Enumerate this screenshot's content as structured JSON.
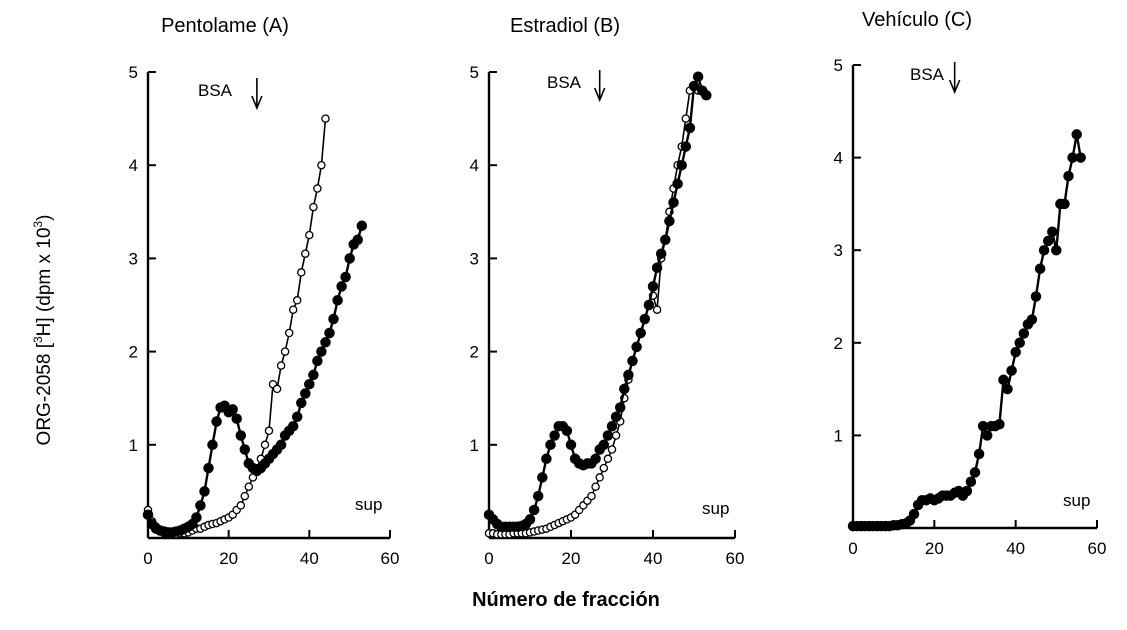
{
  "figure": {
    "ylabel_main": "ORG-2058 [",
    "ylabel_sup1": "3",
    "ylabel_mid": "H] (dpm x 10",
    "ylabel_sup2": "3",
    "ylabel_end": ")",
    "xlabel": "Número de fracción"
  },
  "chart_data": [
    {
      "type": "line",
      "title": "Pentolame (A)",
      "xlim": [
        0,
        60
      ],
      "ylim": [
        0,
        5
      ],
      "xticks": [
        0,
        20,
        40,
        60
      ],
      "yticks": [
        1,
        2,
        3,
        4,
        5
      ],
      "annotations": [
        {
          "text": "BSA",
          "arrow_x": 27
        },
        {
          "text": "sup"
        }
      ],
      "series": [
        {
          "marker": "filled",
          "x": [
            0,
            1,
            2,
            3,
            4,
            5,
            6,
            7,
            8,
            9,
            10,
            11,
            12,
            13,
            14,
            15,
            16,
            17,
            18,
            19,
            20,
            21,
            22,
            23,
            24,
            25,
            26,
            27,
            28,
            29,
            30,
            31,
            32,
            33,
            34,
            35,
            36,
            37,
            38,
            39,
            40,
            41,
            42,
            43,
            44,
            45,
            46,
            47,
            48,
            49,
            50,
            51,
            52,
            53
          ],
          "y": [
            0.25,
            0.15,
            0.1,
            0.08,
            0.07,
            0.06,
            0.06,
            0.07,
            0.08,
            0.1,
            0.12,
            0.15,
            0.22,
            0.35,
            0.5,
            0.75,
            1.0,
            1.25,
            1.4,
            1.42,
            1.35,
            1.38,
            1.28,
            1.1,
            0.95,
            0.8,
            0.75,
            0.72,
            0.75,
            0.8,
            0.85,
            0.9,
            0.95,
            1.0,
            1.1,
            1.15,
            1.2,
            1.3,
            1.45,
            1.55,
            1.65,
            1.75,
            1.9,
            2.0,
            2.1,
            2.2,
            2.35,
            2.55,
            2.7,
            2.8,
            3.0,
            3.15,
            3.2,
            3.35
          ]
        },
        {
          "marker": "open",
          "x": [
            0,
            1,
            2,
            3,
            4,
            5,
            6,
            7,
            8,
            9,
            10,
            11,
            12,
            13,
            14,
            15,
            16,
            17,
            18,
            19,
            20,
            21,
            22,
            23,
            24,
            25,
            26,
            27,
            28,
            29,
            30,
            31,
            32,
            33,
            34,
            35,
            36,
            37,
            38,
            39,
            40,
            41,
            42,
            43,
            44
          ],
          "y": [
            0.3,
            0.18,
            0.12,
            0.08,
            0.05,
            0.04,
            0.04,
            0.04,
            0.05,
            0.05,
            0.06,
            0.08,
            0.1,
            0.1,
            0.12,
            0.14,
            0.15,
            0.16,
            0.18,
            0.2,
            0.22,
            0.25,
            0.3,
            0.35,
            0.45,
            0.55,
            0.65,
            0.75,
            0.85,
            1.0,
            1.15,
            1.65,
            1.6,
            1.85,
            2.0,
            2.2,
            2.45,
            2.55,
            2.85,
            3.05,
            3.25,
            3.55,
            3.75,
            4.0,
            4.5
          ]
        }
      ]
    },
    {
      "type": "line",
      "title": "Estradiol (B)",
      "xlim": [
        0,
        60
      ],
      "ylim": [
        0,
        5
      ],
      "xticks": [
        0,
        20,
        40,
        60
      ],
      "yticks": [
        1,
        2,
        3,
        4,
        5
      ],
      "annotations": [
        {
          "text": "BSA",
          "arrow_x": 27
        },
        {
          "text": "sup"
        }
      ],
      "series": [
        {
          "marker": "filled",
          "x": [
            0,
            1,
            2,
            3,
            4,
            5,
            6,
            7,
            8,
            9,
            10,
            11,
            12,
            13,
            14,
            15,
            16,
            17,
            18,
            19,
            20,
            21,
            22,
            23,
            24,
            25,
            26,
            27,
            28,
            29,
            30,
            31,
            32,
            33,
            34,
            35,
            36,
            37,
            38,
            39,
            40,
            41,
            42,
            43,
            44,
            45,
            46,
            47,
            48,
            49,
            50,
            51,
            52,
            53
          ],
          "y": [
            0.25,
            0.2,
            0.15,
            0.12,
            0.12,
            0.12,
            0.12,
            0.12,
            0.13,
            0.15,
            0.2,
            0.3,
            0.45,
            0.65,
            0.85,
            1.0,
            1.1,
            1.2,
            1.2,
            1.15,
            1.0,
            0.85,
            0.8,
            0.78,
            0.8,
            0.8,
            0.85,
            0.95,
            1.0,
            1.1,
            1.2,
            1.3,
            1.4,
            1.6,
            1.75,
            1.9,
            2.05,
            2.2,
            2.35,
            2.5,
            2.7,
            2.9,
            3.05,
            3.2,
            3.4,
            3.6,
            3.8,
            4.0,
            4.2,
            4.4,
            4.85,
            4.95,
            4.8,
            4.75
          ]
        },
        {
          "marker": "open",
          "x": [
            0,
            1,
            2,
            3,
            4,
            5,
            6,
            7,
            8,
            9,
            10,
            11,
            12,
            13,
            14,
            15,
            16,
            17,
            18,
            19,
            20,
            21,
            22,
            23,
            24,
            25,
            26,
            27,
            28,
            29,
            30,
            31,
            32,
            33,
            34,
            35,
            36,
            37,
            38,
            39,
            40,
            41,
            42,
            43,
            44,
            45,
            46,
            47,
            48,
            49,
            50,
            51
          ],
          "y": [
            0.05,
            0.05,
            0.04,
            0.04,
            0.04,
            0.04,
            0.05,
            0.05,
            0.05,
            0.05,
            0.06,
            0.07,
            0.08,
            0.09,
            0.1,
            0.12,
            0.14,
            0.16,
            0.18,
            0.2,
            0.22,
            0.25,
            0.3,
            0.35,
            0.4,
            0.45,
            0.55,
            0.65,
            0.75,
            0.85,
            0.95,
            1.1,
            1.25,
            1.5,
            1.7,
            1.9,
            2.05,
            2.2,
            2.35,
            2.5,
            2.6,
            2.45,
            3.0,
            3.2,
            3.5,
            3.75,
            4.0,
            4.2,
            4.5,
            4.8,
            4.85,
            4.8
          ]
        }
      ]
    },
    {
      "type": "line",
      "title": "Vehículo (C)",
      "xlim": [
        0,
        60
      ],
      "ylim": [
        0,
        5
      ],
      "xticks": [
        0,
        20,
        40,
        60
      ],
      "yticks": [
        1,
        2,
        3,
        4,
        5
      ],
      "annotations": [
        {
          "text": "BSA",
          "arrow_x": 25
        },
        {
          "text": "sup"
        }
      ],
      "series": [
        {
          "marker": "filled",
          "x": [
            0,
            1,
            2,
            3,
            4,
            5,
            6,
            7,
            8,
            9,
            10,
            11,
            12,
            13,
            14,
            15,
            16,
            17,
            18,
            19,
            20,
            21,
            22,
            23,
            24,
            25,
            26,
            27,
            28,
            29,
            30,
            31,
            32,
            33,
            34,
            35,
            36,
            37,
            38,
            39,
            40,
            41,
            42,
            43,
            44,
            45,
            46,
            47,
            48,
            49,
            50,
            51,
            52,
            53,
            54,
            55,
            56
          ],
          "y": [
            0.02,
            0.02,
            0.02,
            0.02,
            0.02,
            0.02,
            0.02,
            0.02,
            0.02,
            0.02,
            0.03,
            0.03,
            0.04,
            0.05,
            0.08,
            0.15,
            0.25,
            0.3,
            0.3,
            0.32,
            0.3,
            0.32,
            0.35,
            0.35,
            0.35,
            0.38,
            0.4,
            0.35,
            0.4,
            0.5,
            0.6,
            0.8,
            1.1,
            1.0,
            1.1,
            1.1,
            1.12,
            1.6,
            1.5,
            1.7,
            1.9,
            2.0,
            2.1,
            2.2,
            2.25,
            2.5,
            2.8,
            3.0,
            3.1,
            3.2,
            3.0,
            3.5,
            3.5,
            3.8,
            4.0,
            4.25,
            4.0
          ]
        }
      ]
    }
  ]
}
